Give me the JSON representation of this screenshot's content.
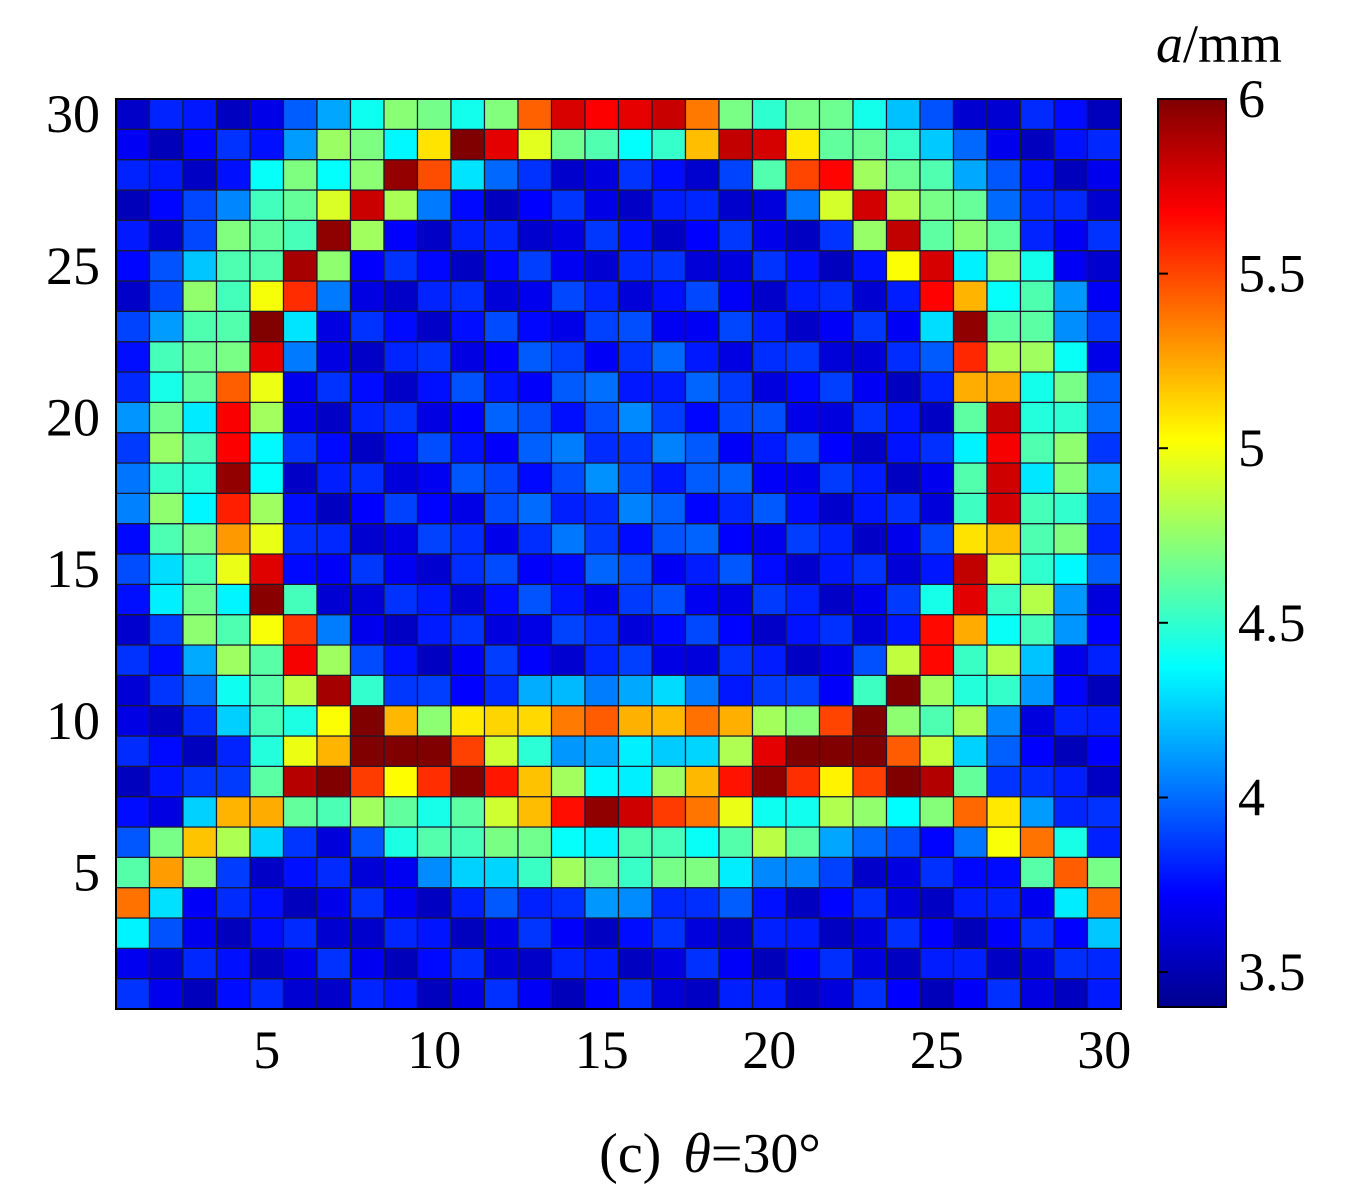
{
  "chart_data": {
    "type": "heatmap",
    "x_ticks": [
      "5",
      "10",
      "15",
      "20",
      "25",
      "30"
    ],
    "y_ticks": [
      "5",
      "10",
      "15",
      "20",
      "25",
      "30"
    ],
    "xlim": [
      1,
      30
    ],
    "ylim": [
      1,
      30
    ],
    "grid_size": [
      30,
      30
    ],
    "pattern_note": "pixel values estimated from image",
    "colorbar": {
      "label_var": "a",
      "label_unit": "/mm",
      "ticks": [
        "3.5",
        "4",
        "4.5",
        "5",
        "5.5",
        "6"
      ],
      "range": [
        3.4,
        6.0
      ],
      "colormap": "jet"
    },
    "caption": {
      "prefix": "(c)",
      "var": "θ",
      "value": "=30°"
    }
  }
}
